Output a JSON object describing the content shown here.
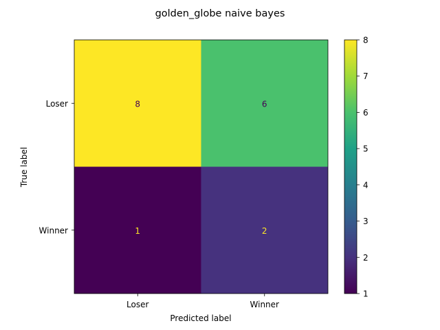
{
  "chart_data": {
    "type": "heatmap",
    "title": "golden_globe naive bayes",
    "xlabel": "Predicted label",
    "ylabel": "True label",
    "x_categories": [
      "Loser",
      "Winner"
    ],
    "y_categories": [
      "Loser",
      "Winner"
    ],
    "values": [
      [
        8,
        6
      ],
      [
        1,
        2
      ]
    ],
    "colormap": "viridis",
    "colorbar": {
      "min": 1,
      "max": 8,
      "ticks": [
        "1",
        "2",
        "3",
        "4",
        "5",
        "6",
        "7",
        "8"
      ]
    },
    "grid": false,
    "colors": {
      "low": "#440154",
      "high": "#fde725",
      "text_on_light": "#440154",
      "text_on_dark": "#fde725"
    }
  }
}
